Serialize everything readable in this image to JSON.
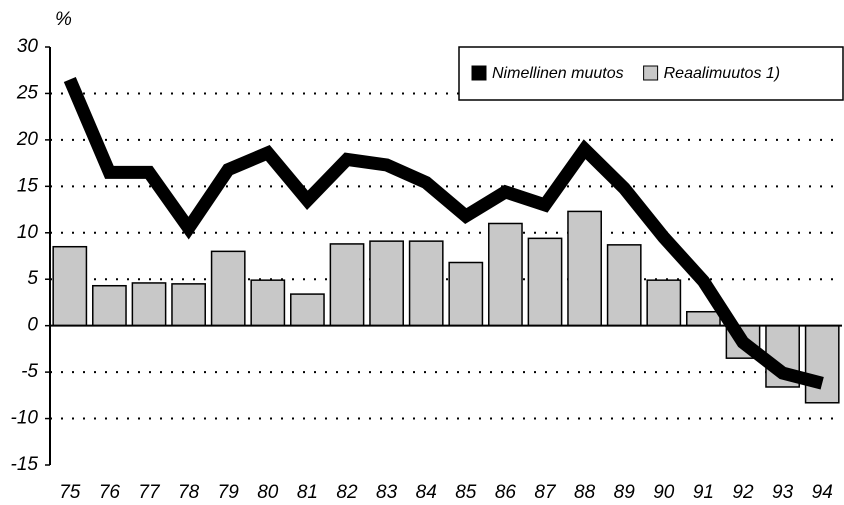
{
  "chart_data": {
    "type": "bar_line",
    "y_label": "%",
    "categories": [
      "75",
      "76",
      "77",
      "78",
      "79",
      "80",
      "81",
      "82",
      "83",
      "84",
      "85",
      "86",
      "87",
      "88",
      "89",
      "90",
      "91",
      "92",
      "93",
      "94"
    ],
    "series": [
      {
        "name": "Nimellinen muutos",
        "type": "line",
        "color": "#000000",
        "values": [
          26.5,
          16.5,
          16.5,
          10.5,
          16.8,
          18.6,
          13.5,
          17.9,
          17.3,
          15.4,
          11.8,
          14.4,
          13.0,
          19.0,
          14.8,
          9.5,
          4.8,
          -1.8,
          -5.1,
          -6.2
        ]
      },
      {
        "name": "Reaalimuutos 1)",
        "type": "bar",
        "color": "#c8c8c8",
        "values": [
          8.5,
          4.3,
          4.6,
          4.5,
          8.0,
          4.9,
          3.4,
          8.8,
          9.1,
          9.1,
          6.8,
          11.0,
          9.4,
          12.3,
          8.7,
          4.9,
          1.5,
          -3.5,
          -6.6,
          -8.3
        ]
      }
    ],
    "ylim": [
      -15,
      30
    ],
    "yticks": [
      -15,
      -10,
      -5,
      0,
      5,
      10,
      15,
      20,
      25,
      30
    ],
    "grid": true,
    "legend": "top-right"
  }
}
